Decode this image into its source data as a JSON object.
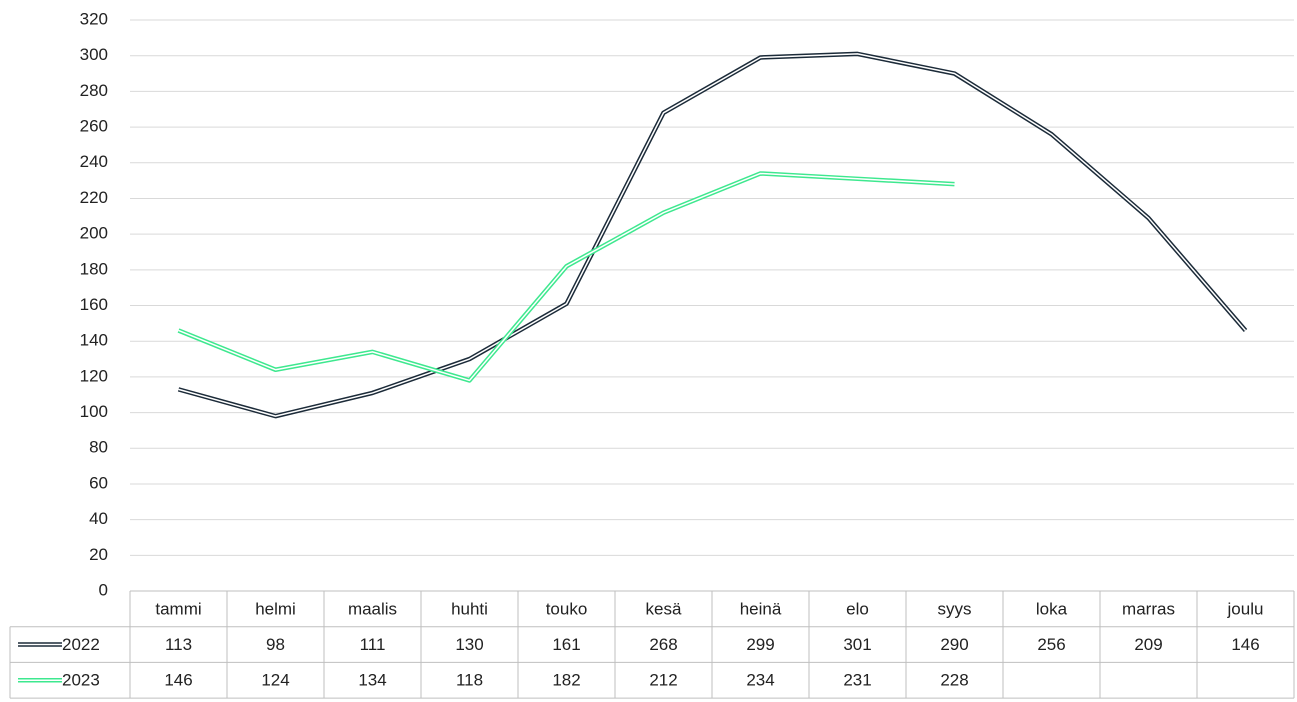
{
  "chart_data": {
    "type": "line",
    "categories": [
      "tammi",
      "helmi",
      "maalis",
      "huhti",
      "touko",
      "kesä",
      "heinä",
      "elo",
      "syys",
      "loka",
      "marras",
      "joulu"
    ],
    "series": [
      {
        "name": "2022",
        "color": "#1c2b39",
        "values": [
          113,
          98,
          111,
          130,
          161,
          268,
          299,
          301,
          290,
          256,
          209,
          146
        ]
      },
      {
        "name": "2023",
        "color": "#3ee88f",
        "values": [
          146,
          124,
          134,
          118,
          182,
          212,
          234,
          231,
          228,
          null,
          null,
          null
        ]
      }
    ],
    "ylim": [
      0,
      320
    ],
    "yticks": [
      0,
      20,
      40,
      60,
      80,
      100,
      120,
      140,
      160,
      180,
      200,
      220,
      240,
      260,
      280,
      300,
      320
    ],
    "grid": true,
    "data_table": true
  }
}
